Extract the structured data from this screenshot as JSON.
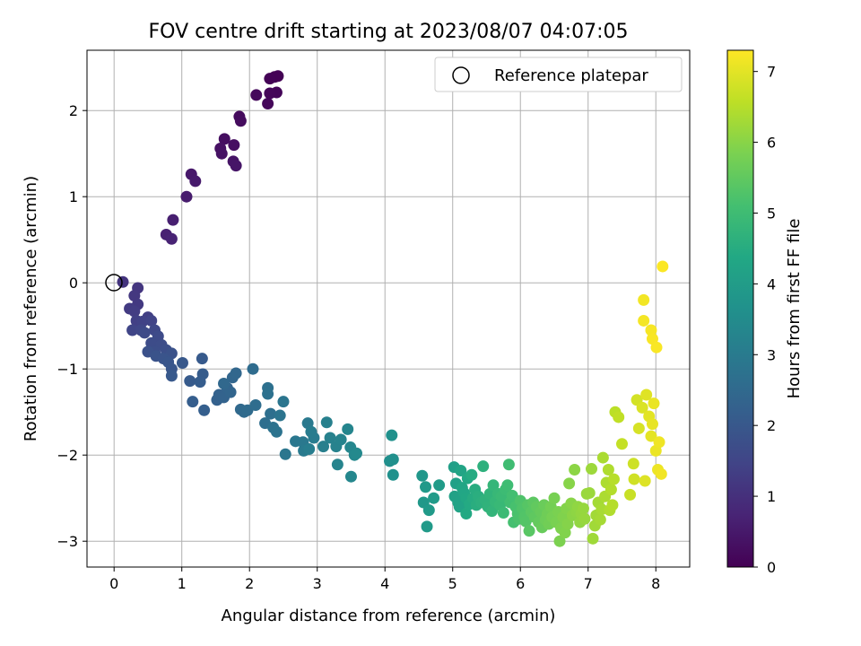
{
  "chart_data": {
    "type": "scatter",
    "title": "FOV centre drift starting at 2023/08/07 04:07:05",
    "xlabel": "Angular distance from reference (arcmin)",
    "ylabel": "Rotation from reference (arcmin)",
    "xlim": [
      -0.4,
      8.5
    ],
    "ylim": [
      -3.3,
      2.7
    ],
    "xticks": [
      "0",
      "1",
      "2",
      "3",
      "4",
      "5",
      "6",
      "7",
      "8"
    ],
    "yticks": [
      "2",
      "1",
      "0",
      "−1",
      "−2",
      "−3"
    ],
    "grid": true,
    "legend": {
      "placement": "top-right",
      "entries": [
        "Reference platepar"
      ]
    },
    "reference_point": {
      "x": 0,
      "y": 0
    },
    "colorbar": {
      "label": "Hours from first FF file",
      "range": [
        0,
        7.3
      ],
      "ticks": [
        "0",
        "1",
        "2",
        "3",
        "4",
        "5",
        "6",
        "7"
      ],
      "colormap": "viridis"
    },
    "points": [
      [
        2.37,
        2.39,
        0.0
      ],
      [
        2.42,
        2.4,
        0.03
      ],
      [
        2.3,
        2.37,
        0.05
      ],
      [
        2.4,
        2.21,
        0.08
      ],
      [
        2.3,
        2.2,
        0.1
      ],
      [
        2.27,
        2.08,
        0.13
      ],
      [
        2.1,
        2.18,
        0.16
      ],
      [
        1.85,
        1.93,
        0.2
      ],
      [
        1.87,
        1.88,
        0.23
      ],
      [
        1.63,
        1.67,
        0.27
      ],
      [
        1.77,
        1.6,
        0.3
      ],
      [
        1.57,
        1.56,
        0.33
      ],
      [
        1.59,
        1.5,
        0.36
      ],
      [
        1.76,
        1.41,
        0.4
      ],
      [
        1.8,
        1.36,
        0.42
      ],
      [
        1.14,
        1.26,
        0.48
      ],
      [
        1.2,
        1.18,
        0.52
      ],
      [
        1.07,
        1.0,
        0.56
      ],
      [
        0.87,
        0.73,
        0.62
      ],
      [
        0.77,
        0.56,
        0.66
      ],
      [
        0.85,
        0.51,
        0.7
      ],
      [
        0.13,
        0.01,
        1.1
      ],
      [
        0.35,
        -0.06,
        1.14
      ],
      [
        0.3,
        -0.15,
        1.18
      ],
      [
        0.35,
        -0.25,
        1.22
      ],
      [
        0.23,
        -0.3,
        1.26
      ],
      [
        0.3,
        -0.33,
        1.3
      ],
      [
        0.5,
        -0.4,
        1.34
      ],
      [
        0.33,
        -0.44,
        1.38
      ],
      [
        0.42,
        -0.45,
        1.42
      ],
      [
        0.55,
        -0.44,
        1.46
      ],
      [
        0.27,
        -0.55,
        1.5
      ],
      [
        0.4,
        -0.55,
        1.54
      ],
      [
        0.6,
        -0.55,
        1.58
      ],
      [
        0.45,
        -0.58,
        1.62
      ],
      [
        0.65,
        -0.62,
        1.65
      ],
      [
        0.55,
        -0.7,
        1.68
      ],
      [
        0.7,
        -0.72,
        1.71
      ],
      [
        0.6,
        -0.8,
        1.74
      ],
      [
        0.77,
        -0.78,
        1.77
      ],
      [
        0.5,
        -0.8,
        1.8
      ],
      [
        0.85,
        -0.82,
        1.83
      ],
      [
        0.62,
        -0.85,
        1.86
      ],
      [
        0.73,
        -0.88,
        1.89
      ],
      [
        0.8,
        -0.92,
        1.92
      ],
      [
        0.85,
        -1.0,
        1.96
      ],
      [
        1.01,
        -0.93,
        2.0
      ],
      [
        0.85,
        -1.08,
        2.02
      ],
      [
        1.3,
        -0.88,
        2.05
      ],
      [
        1.12,
        -1.14,
        2.08
      ],
      [
        1.31,
        -1.06,
        2.11
      ],
      [
        1.27,
        -1.15,
        2.14
      ],
      [
        1.16,
        -1.38,
        2.17
      ],
      [
        1.33,
        -1.48,
        2.2
      ],
      [
        1.52,
        -1.36,
        2.24
      ],
      [
        1.55,
        -1.3,
        2.27
      ],
      [
        1.62,
        -1.33,
        2.3
      ],
      [
        1.67,
        -1.22,
        2.33
      ],
      [
        1.72,
        -1.27,
        2.36
      ],
      [
        1.75,
        -1.1,
        2.39
      ],
      [
        1.8,
        -1.05,
        2.42
      ],
      [
        1.62,
        -1.17,
        2.45
      ],
      [
        1.87,
        -1.47,
        2.48
      ],
      [
        1.92,
        -1.5,
        2.51
      ],
      [
        1.97,
        -1.48,
        2.54
      ],
      [
        2.05,
        -1.0,
        2.57
      ],
      [
        2.09,
        -1.42,
        2.6
      ],
      [
        2.23,
        -1.63,
        2.63
      ],
      [
        2.31,
        -1.52,
        2.66
      ],
      [
        2.27,
        -1.22,
        2.69
      ],
      [
        2.27,
        -1.29,
        2.72
      ],
      [
        2.35,
        -1.68,
        2.75
      ],
      [
        2.4,
        -1.73,
        2.78
      ],
      [
        2.45,
        -1.54,
        2.81
      ],
      [
        2.5,
        -1.38,
        2.84
      ],
      [
        2.53,
        -1.99,
        2.87
      ],
      [
        2.68,
        -1.84,
        2.9
      ],
      [
        2.79,
        -1.85,
        2.93
      ],
      [
        2.86,
        -1.63,
        2.96
      ],
      [
        2.8,
        -1.95,
        2.99
      ],
      [
        2.95,
        -1.8,
        3.02
      ],
      [
        2.91,
        -1.73,
        3.05
      ],
      [
        2.88,
        -1.93,
        3.08
      ],
      [
        3.09,
        -1.9,
        3.11
      ],
      [
        3.14,
        -1.62,
        3.14
      ],
      [
        3.19,
        -1.8,
        3.17
      ],
      [
        3.28,
        -1.9,
        3.2
      ],
      [
        3.35,
        -1.82,
        3.23
      ],
      [
        3.3,
        -2.11,
        3.26
      ],
      [
        3.45,
        -1.7,
        3.29
      ],
      [
        3.49,
        -1.91,
        3.32
      ],
      [
        3.5,
        -2.25,
        3.35
      ],
      [
        3.55,
        -2.0,
        3.38
      ],
      [
        3.58,
        -1.98,
        3.41
      ],
      [
        4.07,
        -2.07,
        3.6
      ],
      [
        4.12,
        -2.05,
        3.62
      ],
      [
        4.1,
        -1.77,
        3.64
      ],
      [
        4.12,
        -2.23,
        3.66
      ],
      [
        4.55,
        -2.24,
        3.85
      ],
      [
        4.57,
        -2.55,
        3.88
      ],
      [
        4.6,
        -2.37,
        3.9
      ],
      [
        4.62,
        -2.83,
        3.92
      ],
      [
        4.65,
        -2.64,
        3.94
      ],
      [
        4.72,
        -2.5,
        3.96
      ],
      [
        4.8,
        -2.35,
        3.98
      ],
      [
        5.02,
        -2.14,
        4.1
      ],
      [
        5.05,
        -2.33,
        4.13
      ],
      [
        5.03,
        -2.48,
        4.16
      ],
      [
        5.08,
        -2.55,
        4.19
      ],
      [
        5.1,
        -2.6,
        4.22
      ],
      [
        5.12,
        -2.18,
        4.25
      ],
      [
        5.14,
        -2.38,
        4.28
      ],
      [
        5.17,
        -2.44,
        4.31
      ],
      [
        5.2,
        -2.5,
        4.34
      ],
      [
        5.22,
        -2.27,
        4.37
      ],
      [
        5.2,
        -2.68,
        4.4
      ],
      [
        5.25,
        -2.57,
        4.43
      ],
      [
        5.28,
        -2.23,
        4.46
      ],
      [
        5.3,
        -2.5,
        4.49
      ],
      [
        5.33,
        -2.4,
        4.52
      ],
      [
        5.35,
        -2.58,
        4.55
      ],
      [
        5.38,
        -2.48,
        4.58
      ],
      [
        5.42,
        -2.55,
        4.61
      ],
      [
        5.45,
        -2.13,
        4.64
      ],
      [
        5.48,
        -2.52,
        4.67
      ],
      [
        5.52,
        -2.6,
        4.7
      ],
      [
        5.55,
        -2.45,
        4.73
      ],
      [
        5.58,
        -2.65,
        4.76
      ],
      [
        5.6,
        -2.35,
        4.79
      ],
      [
        5.63,
        -2.54,
        4.82
      ],
      [
        5.67,
        -2.45,
        4.85
      ],
      [
        5.7,
        -2.58,
        4.88
      ],
      [
        5.72,
        -2.48,
        4.91
      ],
      [
        5.75,
        -2.67,
        4.94
      ],
      [
        5.78,
        -2.4,
        4.97
      ],
      [
        5.81,
        -2.35,
        5.0
      ],
      [
        5.83,
        -2.11,
        5.03
      ],
      [
        5.85,
        -2.55,
        5.06
      ],
      [
        5.88,
        -2.47,
        5.09
      ],
      [
        5.9,
        -2.78,
        5.12
      ],
      [
        5.93,
        -2.6,
        5.15
      ],
      [
        5.96,
        -2.68,
        5.18
      ],
      [
        5.98,
        -2.74,
        5.21
      ],
      [
        6.0,
        -2.53,
        5.24
      ],
      [
        6.03,
        -2.62,
        5.27
      ],
      [
        6.06,
        -2.72,
        5.3
      ],
      [
        6.08,
        -2.77,
        5.33
      ],
      [
        6.11,
        -2.58,
        5.36
      ],
      [
        6.13,
        -2.88,
        5.39
      ],
      [
        6.16,
        -2.66,
        5.42
      ],
      [
        6.19,
        -2.55,
        5.45
      ],
      [
        6.21,
        -2.72,
        5.48
      ],
      [
        6.24,
        -2.6,
        5.51
      ],
      [
        6.27,
        -2.78,
        5.54
      ],
      [
        6.3,
        -2.66,
        5.57
      ],
      [
        6.32,
        -2.84,
        5.6
      ],
      [
        6.35,
        -2.58,
        5.63
      ],
      [
        6.37,
        -2.75,
        5.66
      ],
      [
        6.4,
        -2.68,
        5.69
      ],
      [
        6.42,
        -2.8,
        5.72
      ],
      [
        6.45,
        -2.6,
        5.75
      ],
      [
        6.47,
        -2.72,
        5.78
      ],
      [
        6.5,
        -2.5,
        5.8
      ],
      [
        6.53,
        -2.78,
        5.82
      ],
      [
        6.56,
        -2.66,
        5.84
      ],
      [
        6.58,
        -3.0,
        5.86
      ],
      [
        6.6,
        -2.85,
        5.88
      ],
      [
        6.63,
        -2.72,
        5.9
      ],
      [
        6.66,
        -2.9,
        5.92
      ],
      [
        6.68,
        -2.62,
        5.94
      ],
      [
        6.7,
        -2.8,
        5.96
      ],
      [
        6.72,
        -2.33,
        5.98
      ],
      [
        6.75,
        -2.56,
        6.0
      ],
      [
        6.77,
        -2.7,
        6.02
      ],
      [
        6.8,
        -2.17,
        6.04
      ],
      [
        6.83,
        -2.66,
        6.06
      ],
      [
        6.85,
        -2.6,
        6.08
      ],
      [
        6.88,
        -2.78,
        6.1
      ],
      [
        6.9,
        -2.68,
        6.12
      ],
      [
        6.93,
        -2.62,
        6.14
      ],
      [
        6.95,
        -2.74,
        6.16
      ],
      [
        6.98,
        -2.45,
        6.18
      ],
      [
        7.02,
        -2.44,
        6.2
      ],
      [
        7.05,
        -2.16,
        6.22
      ],
      [
        7.07,
        -2.97,
        6.24
      ],
      [
        7.1,
        -2.82,
        6.26
      ],
      [
        7.12,
        -2.7,
        6.28
      ],
      [
        7.15,
        -2.55,
        6.3
      ],
      [
        7.18,
        -2.75,
        6.32
      ],
      [
        7.2,
        -2.63,
        6.34
      ],
      [
        7.22,
        -2.03,
        6.36
      ],
      [
        7.25,
        -2.48,
        6.38
      ],
      [
        7.27,
        -2.32,
        6.4
      ],
      [
        7.3,
        -2.17,
        6.42
      ],
      [
        7.32,
        -2.64,
        6.44
      ],
      [
        7.34,
        -2.4,
        6.46
      ],
      [
        7.36,
        -2.58,
        6.48
      ],
      [
        7.38,
        -2.28,
        6.5
      ],
      [
        7.4,
        -1.5,
        6.55
      ],
      [
        7.45,
        -1.56,
        6.6
      ],
      [
        7.5,
        -1.87,
        6.65
      ],
      [
        7.62,
        -2.46,
        6.7
      ],
      [
        7.67,
        -2.1,
        6.75
      ],
      [
        7.68,
        -2.28,
        6.78
      ],
      [
        7.72,
        -1.36,
        6.82
      ],
      [
        7.75,
        -1.69,
        6.86
      ],
      [
        7.8,
        -1.45,
        6.9
      ],
      [
        7.84,
        -2.3,
        6.93
      ],
      [
        7.86,
        -1.3,
        6.96
      ],
      [
        7.9,
        -1.55,
        6.99
      ],
      [
        7.93,
        -1.78,
        7.02
      ],
      [
        7.95,
        -1.64,
        7.05
      ],
      [
        7.97,
        -1.4,
        7.08
      ],
      [
        8.0,
        -1.95,
        7.1
      ],
      [
        8.03,
        -2.17,
        7.12
      ],
      [
        8.05,
        -1.85,
        7.14
      ],
      [
        8.08,
        -2.22,
        7.16
      ],
      [
        7.82,
        -0.2,
        7.18
      ],
      [
        7.82,
        -0.44,
        7.2
      ],
      [
        7.93,
        -0.55,
        7.22
      ],
      [
        7.95,
        -0.65,
        7.24
      ],
      [
        8.01,
        -0.75,
        7.26
      ],
      [
        8.1,
        0.19,
        7.28
      ]
    ]
  }
}
